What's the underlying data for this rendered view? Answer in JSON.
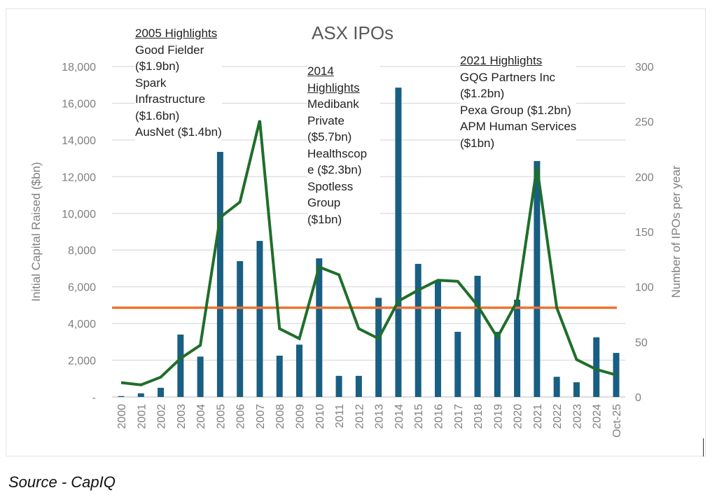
{
  "chart_data": {
    "type": "bar",
    "title": "ASX IPOs",
    "categories": [
      "2000",
      "2001",
      "2002",
      "2003",
      "2004",
      "2005",
      "2006",
      "2007",
      "2008",
      "2009",
      "2010",
      "2011",
      "2012",
      "2013",
      "2014",
      "2015",
      "2016",
      "2017",
      "2018",
      "2019",
      "2020",
      "2021",
      "2022",
      "2023",
      "2024",
      "Oct-25"
    ],
    "series": [
      {
        "name": "Initial Capital Raised",
        "type": "bar",
        "axis": "left",
        "color": "#195e83",
        "values": [
          50,
          200,
          500,
          3400,
          2200,
          13350,
          7400,
          8500,
          2250,
          2850,
          7550,
          1150,
          1150,
          5400,
          16850,
          7250,
          6300,
          3550,
          6600,
          3550,
          5300,
          12850,
          1100,
          800,
          3250,
          2400
        ]
      },
      {
        "name": "Number of IPOs per year",
        "type": "line",
        "axis": "right",
        "color": "#1f6e2a",
        "values": [
          13,
          11,
          18,
          35,
          47,
          163,
          177,
          251,
          62,
          53,
          118,
          111,
          62,
          53,
          87,
          97,
          106,
          105,
          83,
          54,
          87,
          209,
          81,
          34,
          25,
          20
        ]
      },
      {
        "name": "Average IPOs per year",
        "type": "hline",
        "axis": "right",
        "color": "#ed7334",
        "value": 81
      }
    ],
    "ylabel": "Initial Capital Raised ($bn)",
    "y2label": "Number of IPOs per year",
    "ylim": [
      0,
      18000
    ],
    "y2lim": [
      0,
      300
    ],
    "yticks": [
      "-",
      "2,000",
      "4,000",
      "6,000",
      "8,000",
      "10,000",
      "12,000",
      "14,000",
      "16,000",
      "18,000"
    ],
    "y2ticks": [
      "0",
      "50",
      "100",
      "150",
      "200",
      "250",
      "300"
    ],
    "grid": true,
    "annotations": [
      {
        "heading": "2005 Highlights",
        "lines": [
          "Good Fielder",
          "($1.9bn)",
          "Spark",
          "Infrastructure",
          "($1.6bn)",
          "AusNet ($1.4bn)"
        ]
      },
      {
        "heading_lines": [
          "2014",
          "Highlights"
        ],
        "lines": [
          "Medibank",
          "Private",
          "($5.7bn)",
          "Healthscop",
          "e ($2.3bn)",
          "Spotless",
          "Group",
          "($1bn)"
        ]
      },
      {
        "heading": "2021 Highlights",
        "lines": [
          "GQG Partners Inc",
          "($1.2bn)",
          "Pexa Group ($1.2bn)",
          "APM Human Services",
          "($1bn)"
        ]
      }
    ]
  },
  "source": "Source - CapIQ"
}
